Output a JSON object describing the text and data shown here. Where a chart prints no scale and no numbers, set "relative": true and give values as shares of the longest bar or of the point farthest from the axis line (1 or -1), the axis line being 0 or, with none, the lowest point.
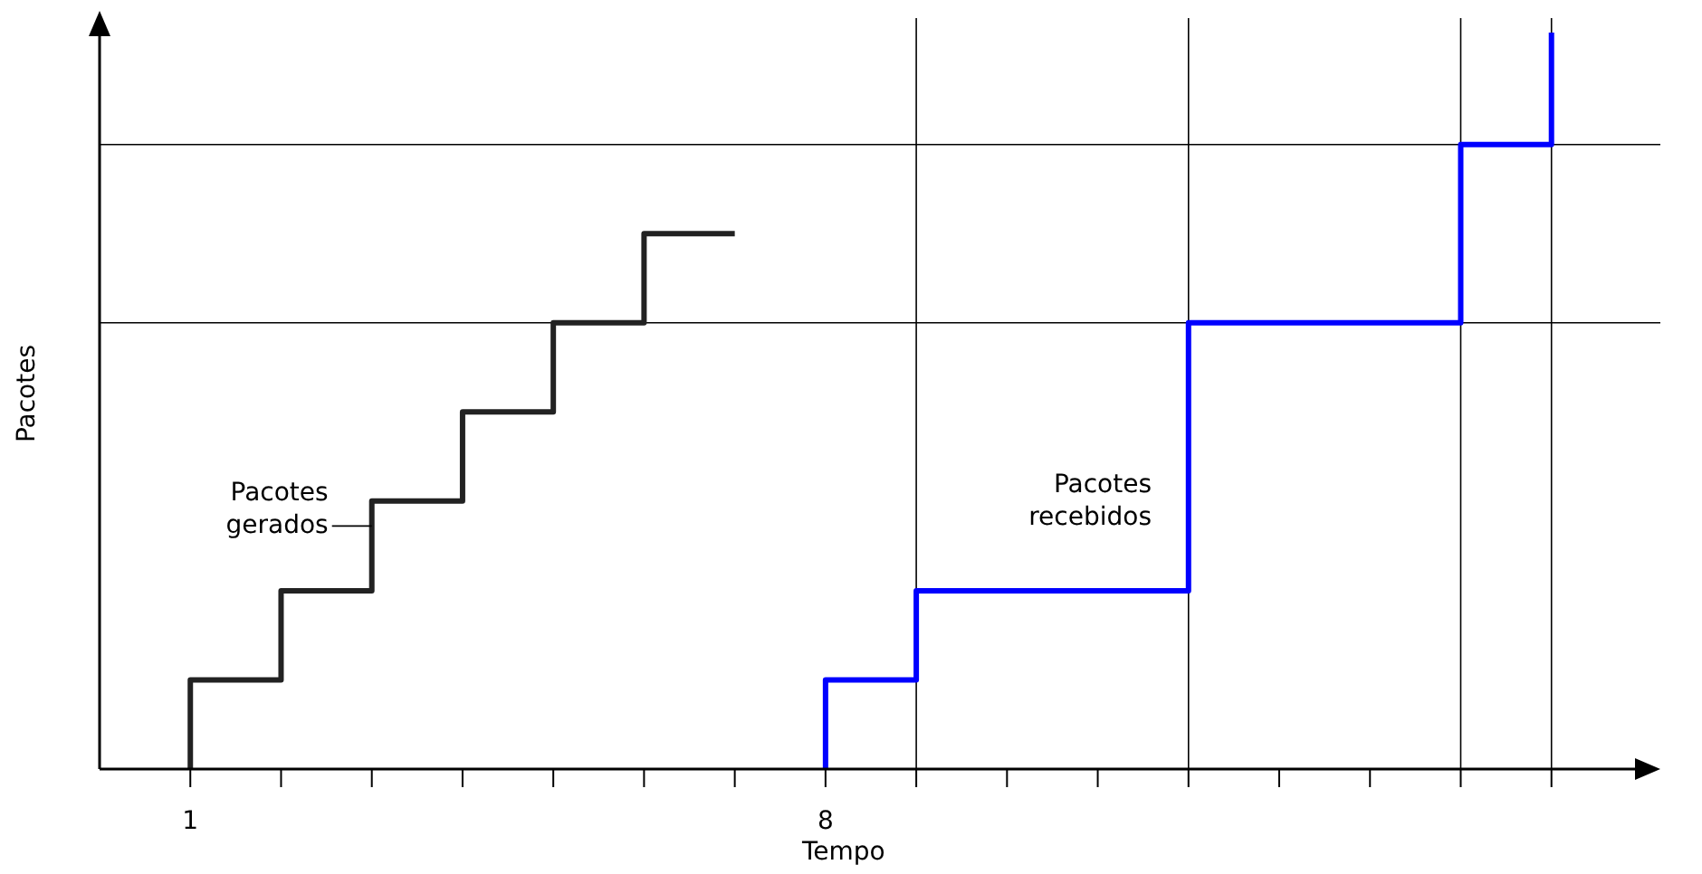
{
  "chart_data": {
    "type": "step",
    "relative": true,
    "xlabel": "Tempo",
    "ylabel": "Pacotes",
    "xlim": [
      0,
      17.2
    ],
    "xticks": [
      1,
      {
        "value": 2,
        "label": null
      },
      {
        "value": 3,
        "label": null
      },
      {
        "value": 4,
        "label": null
      },
      {
        "value": 5,
        "label": null
      },
      {
        "value": 6,
        "label": null
      },
      {
        "value": 7,
        "label": null
      },
      8,
      {
        "value": 9,
        "label": null
      },
      {
        "value": 10,
        "label": null
      },
      {
        "value": 11,
        "label": null
      },
      {
        "value": 12,
        "label": null
      },
      {
        "value": 13,
        "label": null
      },
      {
        "value": 14,
        "label": null
      },
      {
        "value": 15,
        "label": null
      },
      {
        "value": 16,
        "label": null
      }
    ],
    "series": [
      {
        "color": "#222222",
        "x": [
          1,
          1,
          2,
          3,
          4,
          5,
          6,
          7
        ],
        "values": [
          0,
          0.121,
          0.242,
          0.364,
          0.485,
          0.606,
          0.727,
          0.727
        ]
      },
      {
        "color": "#0000ff",
        "x": [
          8,
          8,
          9,
          12,
          15,
          16
        ],
        "values": [
          0,
          0.121,
          0.242,
          0.606,
          0.848,
          1
        ]
      }
    ],
    "ref_lines": [
      {
        "axis": "y",
        "value": 0.606,
        "color": "#000000"
      },
      {
        "axis": "y",
        "value": 0.848,
        "color": "#000000"
      },
      {
        "axis": "x",
        "value": 9,
        "color": "#000000"
      },
      {
        "axis": "x",
        "value": 12,
        "color": "#000000"
      },
      {
        "axis": "x",
        "value": 15,
        "color": "#000000"
      },
      {
        "axis": "x",
        "value": 16,
        "color": "#000000"
      }
    ],
    "annotations": [
      {
        "text": "Pacotes gerados",
        "x": 3,
        "y": 0.33
      },
      "Pacotes recebidos"
    ],
    "grid": false
  }
}
